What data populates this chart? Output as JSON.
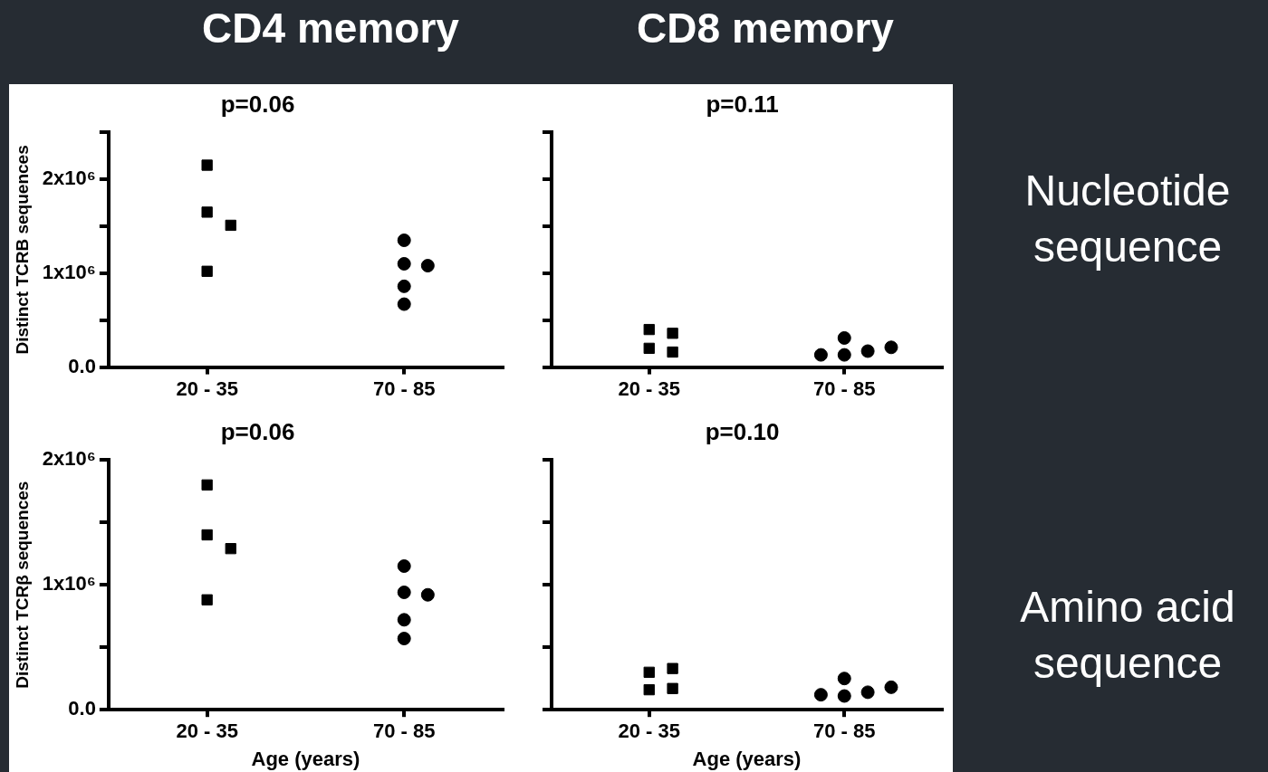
{
  "chart_data": [
    {
      "type": "scatter",
      "title": "p=0.06",
      "ylabel": "Distinct TCRB sequences",
      "annotations": [
        "CD4 memory"
      ],
      "categories": [
        "20 - 35",
        "70 - 85"
      ],
      "ylim": [
        0,
        2500000
      ],
      "yticks": [
        {
          "value": 0,
          "label": "0.0"
        },
        {
          "value": 500000,
          "label": null
        },
        {
          "value": 1000000,
          "label": "1x10⁶"
        },
        {
          "value": 1500000,
          "label": null
        },
        {
          "value": 2000000,
          "label": "2x10⁶"
        },
        {
          "value": 2500000,
          "label": null
        }
      ],
      "legend": false,
      "series": [
        {
          "color": "#000000",
          "marker": "square",
          "x": [
            "20 - 35",
            "20 - 35",
            "20 - 35",
            "20 - 35"
          ],
          "values": [
            2150000,
            1650000,
            1510000,
            1020000
          ]
        },
        {
          "color": "#000000",
          "marker": "circle",
          "x": [
            "70 - 85",
            "70 - 85",
            "70 - 85",
            "70 - 85",
            "70 - 85"
          ],
          "values": [
            1350000,
            1100000,
            1080000,
            860000,
            670000
          ]
        }
      ]
    },
    {
      "type": "scatter",
      "title": "p=0.11",
      "annotations": [
        "CD8 memory",
        "Nucleotide sequence"
      ],
      "categories": [
        "20 - 35",
        "70 - 85"
      ],
      "ylim": [
        0,
        2500000
      ],
      "yticks": [
        {
          "value": 0,
          "label": null
        },
        {
          "value": 500000,
          "label": null
        },
        {
          "value": 1000000,
          "label": null
        },
        {
          "value": 1500000,
          "label": null
        },
        {
          "value": 2000000,
          "label": null
        },
        {
          "value": 2500000,
          "label": null
        }
      ],
      "tick_labels": "x",
      "legend": false,
      "series": [
        {
          "color": "#000000",
          "marker": "square",
          "x": [
            "20 - 35",
            "20 - 35",
            "20 - 35",
            "20 - 35"
          ],
          "values": [
            400000,
            360000,
            200000,
            160000
          ]
        },
        {
          "color": "#000000",
          "marker": "circle",
          "x": [
            "70 - 85",
            "70 - 85",
            "70 - 85",
            "70 - 85",
            "70 - 85"
          ],
          "values": [
            310000,
            170000,
            130000,
            130000,
            210000
          ]
        }
      ]
    },
    {
      "type": "scatter",
      "title": "p=0.06",
      "xlabel": "Age (years)",
      "ylabel": "Distinct TCRβ sequences",
      "categories": [
        "20 - 35",
        "70 - 85"
      ],
      "ylim": [
        0,
        2000000
      ],
      "yticks": [
        {
          "value": 0,
          "label": "0.0"
        },
        {
          "value": 500000,
          "label": null
        },
        {
          "value": 1000000,
          "label": "1x10⁶"
        },
        {
          "value": 1500000,
          "label": null
        },
        {
          "value": 2000000,
          "label": "2x10⁶"
        }
      ],
      "legend": false,
      "series": [
        {
          "color": "#000000",
          "marker": "square",
          "x": [
            "20 - 35",
            "20 - 35",
            "20 - 35",
            "20 - 35"
          ],
          "values": [
            1800000,
            1400000,
            1290000,
            880000
          ]
        },
        {
          "color": "#000000",
          "marker": "circle",
          "x": [
            "70 - 85",
            "70 - 85",
            "70 - 85",
            "70 - 85",
            "70 - 85"
          ],
          "values": [
            1150000,
            940000,
            920000,
            720000,
            570000
          ]
        }
      ]
    },
    {
      "type": "scatter",
      "title": "p=0.10",
      "xlabel": "Age (years)",
      "annotations": [
        "Amino acid sequence"
      ],
      "categories": [
        "20 - 35",
        "70 - 85"
      ],
      "ylim": [
        0,
        2000000
      ],
      "yticks": [
        {
          "value": 0,
          "label": null
        },
        {
          "value": 500000,
          "label": null
        },
        {
          "value": 1000000,
          "label": null
        },
        {
          "value": 1500000,
          "label": null
        },
        {
          "value": 2000000,
          "label": null
        }
      ],
      "tick_labels": "x",
      "legend": false,
      "series": [
        {
          "color": "#000000",
          "marker": "square",
          "x": [
            "20 - 35",
            "20 - 35",
            "20 - 35",
            "20 - 35"
          ],
          "values": [
            300000,
            330000,
            160000,
            170000
          ]
        },
        {
          "color": "#000000",
          "marker": "circle",
          "x": [
            "70 - 85",
            "70 - 85",
            "70 - 85",
            "70 - 85",
            "70 - 85"
          ],
          "values": [
            250000,
            140000,
            110000,
            120000,
            180000
          ]
        }
      ]
    }
  ]
}
